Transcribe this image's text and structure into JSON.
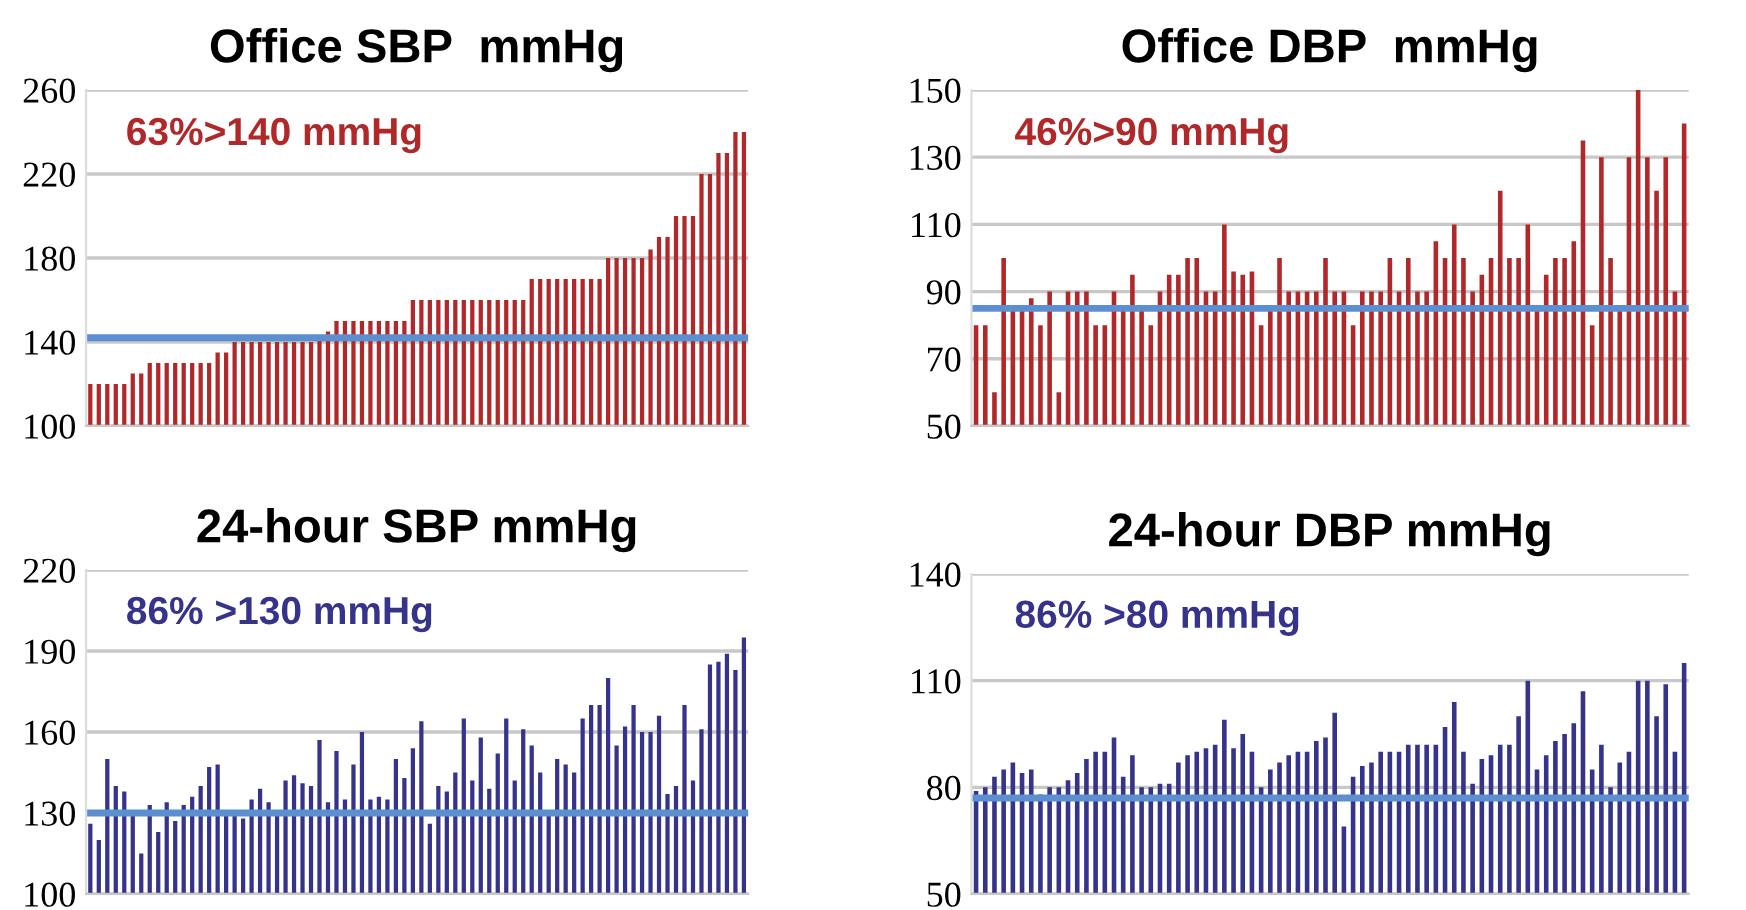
{
  "chart_data": [
    {
      "type": "bar",
      "title": "Office SBP  mmHg",
      "categories": [
        null,
        null,
        null,
        null,
        null,
        null,
        null,
        null,
        null,
        null,
        null,
        null,
        null,
        null,
        null,
        null,
        null,
        null,
        null,
        null,
        null,
        null,
        null,
        null,
        null,
        null,
        null,
        null,
        null,
        null,
        null,
        null,
        null,
        null,
        null,
        null,
        null,
        null,
        null,
        null,
        null,
        null,
        null,
        null,
        null,
        null,
        null,
        null,
        null,
        null,
        null,
        null,
        null,
        null,
        null,
        null,
        null,
        null,
        null,
        null,
        null,
        null,
        null,
        null,
        null,
        null,
        null,
        null,
        null,
        null,
        null,
        null,
        null,
        null,
        null,
        null,
        null,
        null
      ],
      "series": [
        {
          "color": "#b0282a",
          "values": [
            120,
            120,
            120,
            120,
            120,
            125,
            125,
            130,
            130,
            130,
            130,
            130,
            130,
            130,
            130,
            135,
            135,
            140,
            140,
            140,
            140,
            140,
            140,
            140,
            140,
            140,
            140,
            142,
            145,
            150,
            150,
            150,
            150,
            150,
            150,
            150,
            150,
            150,
            160,
            160,
            160,
            160,
            160,
            160,
            160,
            160,
            160,
            160,
            160,
            160,
            160,
            160,
            170,
            170,
            170,
            170,
            170,
            170,
            170,
            170,
            170,
            180,
            180,
            180,
            180,
            180,
            184,
            190,
            190,
            200,
            200,
            200,
            220,
            220,
            230,
            230,
            240,
            240
          ]
        }
      ],
      "ylim": [
        100,
        260
      ],
      "yticks": [
        100,
        140,
        180,
        220,
        260
      ],
      "grid": "y",
      "tick_labels": "y",
      "ref_lines": [
        {
          "axis": "y",
          "value": 142,
          "color": "#5b8fd0"
        }
      ],
      "annotations": [
        "63%>140 mmHg"
      ]
    },
    {
      "type": "bar",
      "title": "Office DBP  mmHg",
      "categories": [
        null,
        null,
        null,
        null,
        null,
        null,
        null,
        null,
        null,
        null,
        null,
        null,
        null,
        null,
        null,
        null,
        null,
        null,
        null,
        null,
        null,
        null,
        null,
        null,
        null,
        null,
        null,
        null,
        null,
        null,
        null,
        null,
        null,
        null,
        null,
        null,
        null,
        null,
        null,
        null,
        null,
        null,
        null,
        null,
        null,
        null,
        null,
        null,
        null,
        null,
        null,
        null,
        null,
        null,
        null,
        null,
        null,
        null,
        null,
        null,
        null,
        null,
        null,
        null,
        null,
        null,
        null,
        null,
        null,
        null,
        null,
        null,
        null,
        null,
        null,
        null,
        null,
        null
      ],
      "series": [
        {
          "color": "#b0282a",
          "values": [
            80,
            80,
            60,
            100,
            85,
            85,
            88,
            80,
            90,
            60,
            90,
            90,
            90,
            80,
            80,
            90,
            85,
            95,
            85,
            80,
            90,
            95,
            95,
            100,
            100,
            90,
            90,
            110,
            96,
            95,
            96,
            80,
            85,
            100,
            90,
            90,
            90,
            90,
            100,
            90,
            90,
            80,
            90,
            90,
            90,
            100,
            90,
            100,
            90,
            90,
            105,
            100,
            110,
            100,
            90,
            95,
            100,
            120,
            100,
            100,
            110,
            85,
            95,
            100,
            100,
            105,
            135,
            80,
            130,
            100,
            85,
            130,
            150,
            130,
            120,
            130,
            90,
            140
          ]
        }
      ],
      "ylim": [
        50,
        150
      ],
      "yticks": [
        50,
        70,
        90,
        110,
        130,
        150
      ],
      "grid": "y",
      "tick_labels": "y",
      "ref_lines": [
        {
          "axis": "y",
          "value": 85,
          "color": "#5b8fd0"
        }
      ],
      "annotations": [
        "46%>90 mmHg"
      ]
    },
    {
      "type": "bar",
      "title": "24-hour SBP mmHg",
      "categories": [
        null,
        null,
        null,
        null,
        null,
        null,
        null,
        null,
        null,
        null,
        null,
        null,
        null,
        null,
        null,
        null,
        null,
        null,
        null,
        null,
        null,
        null,
        null,
        null,
        null,
        null,
        null,
        null,
        null,
        null,
        null,
        null,
        null,
        null,
        null,
        null,
        null,
        null,
        null,
        null,
        null,
        null,
        null,
        null,
        null,
        null,
        null,
        null,
        null,
        null,
        null,
        null,
        null,
        null,
        null,
        null,
        null,
        null,
        null,
        null,
        null,
        null,
        null,
        null,
        null,
        null,
        null,
        null,
        null,
        null,
        null,
        null,
        null,
        null,
        null,
        null,
        null,
        null
      ],
      "series": [
        {
          "color": "#36338a",
          "values": [
            126,
            120,
            150,
            140,
            138,
            130,
            115,
            133,
            123,
            134,
            127,
            133,
            136,
            140,
            147,
            148,
            129,
            131,
            128,
            135,
            139,
            134,
            130,
            142,
            144,
            141,
            140,
            157,
            134,
            153,
            135,
            148,
            160,
            135,
            136,
            135,
            150,
            143,
            154,
            164,
            126,
            140,
            138,
            145,
            165,
            142,
            158,
            139,
            152,
            165,
            142,
            161,
            155,
            145,
            131,
            150,
            148,
            145,
            165,
            170,
            170,
            180,
            155,
            162,
            170,
            160,
            160,
            166,
            137,
            140,
            170,
            142,
            161,
            185,
            186,
            189,
            183,
            195
          ]
        }
      ],
      "ylim": [
        100,
        220
      ],
      "yticks": [
        100,
        130,
        160,
        190,
        220
      ],
      "grid": "y",
      "tick_labels": "y",
      "ref_lines": [
        {
          "axis": "y",
          "value": 130,
          "color": "#5b8fd0"
        }
      ],
      "annotations": [
        "86% >130 mmHg"
      ]
    },
    {
      "type": "bar",
      "title": "24-hour DBP mmHg",
      "categories": [
        null,
        null,
        null,
        null,
        null,
        null,
        null,
        null,
        null,
        null,
        null,
        null,
        null,
        null,
        null,
        null,
        null,
        null,
        null,
        null,
        null,
        null,
        null,
        null,
        null,
        null,
        null,
        null,
        null,
        null,
        null,
        null,
        null,
        null,
        null,
        null,
        null,
        null,
        null,
        null,
        null,
        null,
        null,
        null,
        null,
        null,
        null,
        null,
        null,
        null,
        null,
        null,
        null,
        null,
        null,
        null,
        null,
        null,
        null,
        null,
        null,
        null,
        null,
        null,
        null,
        null,
        null,
        null,
        null,
        null,
        null,
        null,
        null,
        null,
        null,
        null,
        null,
        null
      ],
      "series": [
        {
          "color": "#36338a",
          "values": [
            79,
            80,
            83,
            85,
            87,
            84,
            85,
            78,
            80,
            80,
            82,
            84,
            88,
            90,
            90,
            94,
            83,
            89,
            80,
            80,
            81,
            81,
            87,
            89,
            90,
            91,
            92,
            99,
            91,
            95,
            90,
            80,
            85,
            87,
            89,
            90,
            90,
            93,
            94,
            101,
            69,
            83,
            86,
            87,
            90,
            90,
            90,
            92,
            92,
            92,
            92,
            97,
            104,
            90,
            81,
            88,
            89,
            92,
            92,
            100,
            110,
            85,
            89,
            93,
            95,
            98,
            107,
            85,
            92,
            80,
            87,
            90,
            110,
            110,
            100,
            109,
            90,
            115
          ]
        }
      ],
      "ylim": [
        50,
        140
      ],
      "yticks": [
        50,
        80,
        110,
        140
      ],
      "grid": "y",
      "tick_labels": "y",
      "ref_lines": [
        {
          "axis": "y",
          "value": 77,
          "color": "#5b8fd0"
        }
      ],
      "annotations": [
        "86% >80 mmHg"
      ]
    }
  ]
}
